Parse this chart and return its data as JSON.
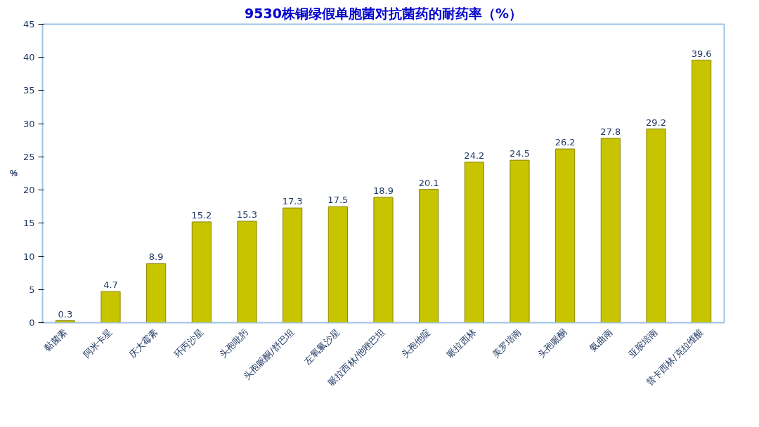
{
  "chart_data": {
    "type": "bar",
    "title": "9530株铜绿假单胞菌对抗菌药的耐药率（%）",
    "ylabel": "%",
    "categories": [
      "黏菌素",
      "阿米卡星",
      "庆大霉素",
      "环丙沙星",
      "头孢吡肟",
      "头孢哌酮/舒巴坦",
      "左氧氟沙星",
      "哌拉西林/他唑巴坦",
      "头孢他啶",
      "哌拉西林",
      "美罗培南",
      "头孢哌酮",
      "氨曲南",
      "亚胺培南",
      "替卡西林/克拉维酸"
    ],
    "values": [
      0.3,
      4.7,
      8.9,
      15.2,
      15.3,
      17.3,
      17.5,
      18.9,
      20.1,
      24.2,
      24.5,
      26.2,
      27.8,
      29.2,
      39.6
    ],
    "color": "#c8c400",
    "ylim": [
      0,
      45
    ],
    "yticks": [
      0,
      5,
      10,
      15,
      20,
      25,
      30,
      35,
      40,
      45
    ],
    "data_labels": true,
    "grid": false
  }
}
